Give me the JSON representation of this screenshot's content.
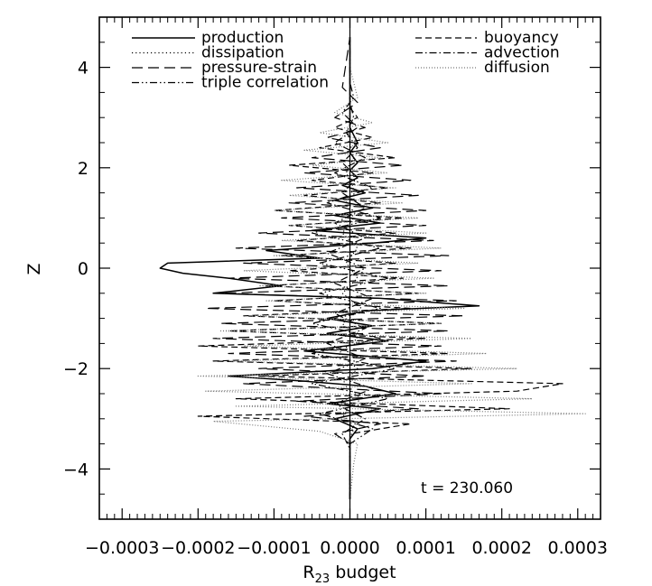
{
  "chart_data": {
    "type": "line",
    "title": "",
    "xlabel": "R₂₃ budget",
    "xlabel_main": "R",
    "xlabel_sub": "23",
    "xlabel_rest": " budget",
    "ylabel": "Z",
    "xlim": [
      -0.00033,
      0.00033
    ],
    "ylim": [
      -5,
      5
    ],
    "x_ticks": [
      -0.0003,
      -0.0002,
      -0.0001,
      0.0,
      0.0001,
      0.0002,
      0.0003
    ],
    "x_tick_labels": [
      "−0.0003",
      "−0.0002",
      "−0.0001",
      "0.0000",
      "0.0001",
      "0.0002",
      "0.0003"
    ],
    "y_ticks": [
      -4,
      -2,
      0,
      2,
      4
    ],
    "y_tick_labels": [
      "−4",
      "−2",
      "0",
      "2",
      "4"
    ],
    "grid": false,
    "legend_position": "top",
    "annotation": "t = 230.060",
    "series": [
      {
        "name": "production",
        "style": "solid",
        "z": [
          -4.6,
          -3.4,
          -3.2,
          -3.0,
          -2.8,
          -2.7,
          -2.5,
          -2.35,
          -2.25,
          -2.15,
          -2.0,
          -1.85,
          -1.65,
          -1.45,
          -1.3,
          -1.15,
          -1.0,
          -0.85,
          -0.75,
          -0.6,
          -0.5,
          -0.35,
          -0.2,
          -0.1,
          0.0,
          0.1,
          0.2,
          0.35,
          0.5,
          0.6,
          0.75,
          0.9,
          1.05,
          1.2,
          1.35,
          1.5,
          1.65,
          1.8,
          1.95,
          2.1,
          2.3,
          2.5,
          2.8,
          3.2,
          4.6
        ],
        "x": [
          0.0,
          0.0,
          1e-05,
          -2e-05,
          4e-05,
          -3e-05,
          6e-05,
          2e-05,
          -6e-05,
          -0.00016,
          3e-05,
          0.0001,
          -6e-05,
          5e-05,
          -3e-05,
          3e-05,
          -3e-05,
          2e-05,
          0.00017,
          4e-05,
          -0.00018,
          -9e-05,
          -0.00016,
          -0.00022,
          -0.00025,
          -0.00024,
          -4e-05,
          -0.00011,
          3e-05,
          0.0001,
          -5e-05,
          4e-05,
          -2e-05,
          3e-05,
          -2e-05,
          2e-05,
          -1e-05,
          1e-05,
          0.0,
          1e-05,
          0.0,
          1e-05,
          0.0,
          0.0,
          0.0
        ]
      },
      {
        "name": "dissipation",
        "style": "dotted",
        "z": [
          -4.6,
          -3.4,
          -3.2,
          -2.9,
          -2.6,
          -2.3,
          -2.0,
          -1.7,
          -1.4,
          -1.1,
          -0.8,
          -0.5,
          -0.2,
          0.1,
          0.4,
          0.7,
          1.0,
          1.3,
          1.6,
          1.9,
          2.2,
          2.5,
          2.8,
          3.1,
          4.6
        ],
        "x": [
          0.0,
          0.0,
          5e-06,
          -1e-05,
          1.5e-05,
          -1e-05,
          1e-05,
          -1.5e-05,
          1e-05,
          -1e-05,
          1.5e-05,
          -1e-05,
          1e-05,
          -5e-06,
          1e-05,
          -1e-05,
          5e-06,
          -5e-06,
          5e-06,
          -5e-06,
          5e-06,
          0.0,
          0.0,
          0.0,
          0.0
        ]
      },
      {
        "name": "pressure-strain",
        "style": "long-dash",
        "z": [
          -4.6,
          -3.5,
          -3.3,
          -3.1,
          -2.95,
          -2.8,
          -2.65,
          -2.5,
          -2.3,
          -2.15,
          -2.0,
          -1.85,
          -1.7,
          -1.55,
          -1.4,
          -1.25,
          -1.1,
          -0.95,
          -0.8,
          -0.65,
          -0.5,
          -0.35,
          -0.2,
          -0.05,
          0.1,
          0.25,
          0.4,
          0.55,
          0.7,
          0.85,
          1.0,
          1.15,
          1.3,
          1.45,
          1.6,
          1.75,
          1.9,
          2.05,
          2.2,
          2.4,
          2.6,
          2.8,
          3.0,
          3.3,
          3.6,
          4.6
        ],
        "x": [
          0.0,
          0.0,
          -2e-05,
          4e-05,
          -6e-05,
          9e-05,
          -7e-05,
          0.00012,
          -0.00014,
          0.0001,
          -0.00012,
          0.00014,
          -0.00016,
          0.00012,
          -0.00018,
          0.00013,
          -0.00017,
          0.00015,
          -0.00019,
          0.00014,
          -0.00017,
          0.00013,
          -0.00016,
          0.00012,
          -0.00014,
          0.00013,
          -0.00015,
          0.00011,
          -0.00012,
          0.0001,
          -9e-05,
          0.0001,
          -8e-05,
          9e-05,
          -7e-05,
          8e-05,
          -6e-05,
          7e-05,
          -5e-05,
          4e-05,
          -3e-05,
          2e-05,
          -2e-05,
          1e-05,
          -1e-05,
          0.0
        ]
      },
      {
        "name": "triple correlation",
        "style": "dash-dot-dot",
        "z": [
          -4.6,
          -3.5,
          -3.2,
          -2.9,
          -2.6,
          -2.3,
          -2.0,
          -1.7,
          -1.4,
          -1.1,
          -0.8,
          -0.5,
          -0.2,
          0.1,
          0.4,
          0.7,
          1.0,
          1.3,
          1.6,
          1.9,
          2.2,
          2.5,
          2.8,
          3.1,
          3.4,
          3.7,
          4.6
        ],
        "x": [
          0.0,
          0.0,
          3e-05,
          -4e-05,
          5e-05,
          -5e-05,
          6e-05,
          -5e-05,
          4e-05,
          -5e-05,
          4e-05,
          -4e-05,
          5e-05,
          -4e-05,
          4e-05,
          -5e-05,
          4e-05,
          -3e-05,
          3e-05,
          -2e-05,
          2e-05,
          -2e-05,
          1e-05,
          -1e-05,
          5e-06,
          0.0,
          0.0
        ]
      },
      {
        "name": "buoyancy",
        "style": "short-dash",
        "z": [
          -4.6,
          -3.3,
          -3.1,
          -2.95,
          -2.8,
          -2.6,
          -2.45,
          -2.3,
          -2.15,
          -2.0,
          -1.85,
          -1.7,
          -1.55,
          -1.4,
          -1.25,
          -1.1,
          -0.95,
          -0.8,
          -0.65,
          -0.5,
          -0.35,
          -0.2,
          -0.05,
          0.1,
          0.25,
          0.4,
          0.55,
          0.7,
          0.85,
          1.0,
          1.15,
          1.3,
          1.45,
          1.6,
          1.75,
          1.9,
          2.05,
          2.2,
          2.4,
          2.6,
          2.8,
          3.0,
          3.2,
          4.6
        ],
        "x": [
          0.0,
          0.0,
          8e-05,
          -0.0002,
          0.00021,
          -0.00015,
          0.00022,
          0.00028,
          -0.00012,
          0.00016,
          -0.00018,
          0.00013,
          -0.0002,
          0.0001,
          -0.00016,
          0.00012,
          -0.00014,
          8e-05,
          -0.0001,
          9e-05,
          -0.00011,
          7e-05,
          -8e-05,
          6e-05,
          -9e-05,
          8e-05,
          -7e-05,
          6e-05,
          -8e-05,
          7e-05,
          -0.0001,
          4e-05,
          -6e-05,
          5e-05,
          -5e-05,
          3e-05,
          -8e-05,
          6e-05,
          -4e-05,
          3e-05,
          -2e-05,
          1e-05,
          0.0,
          0.0
        ]
      },
      {
        "name": "advection",
        "style": "dash-dot",
        "z": [
          -4.6,
          -3.6,
          -3.3,
          -3.0,
          -2.7,
          -2.4,
          -2.1,
          -1.8,
          -1.5,
          -1.2,
          -0.9,
          -0.6,
          -0.3,
          0.0,
          0.3,
          0.6,
          0.9,
          1.2,
          1.5,
          1.8,
          2.1,
          2.4,
          2.7,
          3.0,
          3.3,
          4.6
        ],
        "x": [
          0.0,
          0.0,
          -1e-05,
          2e-05,
          -2e-05,
          3e-05,
          -3e-05,
          2e-05,
          -3e-05,
          2e-05,
          -2e-05,
          3e-05,
          -2e-05,
          2e-05,
          -3e-05,
          2e-05,
          -2e-05,
          2e-05,
          -1e-05,
          1e-05,
          -1e-05,
          1e-05,
          -5e-06,
          5e-06,
          0.0,
          0.0
        ]
      },
      {
        "name": "diffusion",
        "style": "fine-dot",
        "color": "#777777",
        "z": [
          -4.6,
          -3.9,
          -3.5,
          -3.25,
          -3.05,
          -2.9,
          -2.75,
          -2.6,
          -2.45,
          -2.3,
          -2.15,
          -2.0,
          -1.85,
          -1.7,
          -1.55,
          -1.4,
          -1.25,
          -1.1,
          -0.95,
          -0.8,
          -0.65,
          -0.5,
          -0.35,
          -0.2,
          -0.05,
          0.1,
          0.25,
          0.4,
          0.55,
          0.7,
          0.85,
          1.0,
          1.15,
          1.3,
          1.45,
          1.6,
          1.75,
          1.9,
          2.05,
          2.2,
          2.35,
          2.5,
          2.7,
          2.9,
          3.1,
          3.4,
          3.7,
          4.0,
          4.6
        ],
        "x": [
          0.0,
          5e-06,
          1e-05,
          -4e-05,
          -0.00018,
          0.00031,
          -0.00015,
          0.00024,
          -0.00019,
          0.00016,
          -0.0002,
          0.00022,
          -0.00016,
          0.00018,
          -0.00014,
          0.00016,
          -0.00017,
          0.00012,
          -0.00013,
          0.00015,
          -0.00011,
          0.0001,
          -0.00012,
          0.00011,
          -0.00014,
          9e-05,
          -0.0001,
          0.00012,
          -9e-05,
          0.0001,
          -8e-05,
          9e-05,
          -0.0001,
          7e-05,
          -8e-05,
          6e-05,
          -9e-05,
          5e-05,
          -5e-05,
          4e-05,
          -6e-05,
          5e-05,
          -4e-05,
          3e-05,
          -2e-05,
          1e-05,
          5e-06,
          0.0,
          0.0
        ]
      }
    ]
  }
}
